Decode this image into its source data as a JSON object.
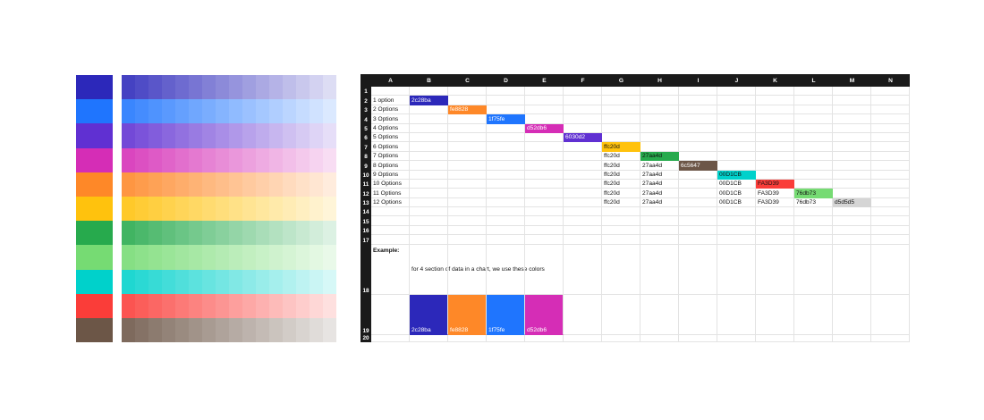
{
  "palette": [
    {
      "name": "indigo",
      "hex": "#2c28ba"
    },
    {
      "name": "blue",
      "hex": "#1f75fe"
    },
    {
      "name": "purple",
      "hex": "#6030d2"
    },
    {
      "name": "magenta",
      "hex": "#d52db6"
    },
    {
      "name": "orange",
      "hex": "#fe8828"
    },
    {
      "name": "yellow",
      "hex": "#ffc20d"
    },
    {
      "name": "green",
      "hex": "#27aa4d"
    },
    {
      "name": "light-green",
      "hex": "#76db73"
    },
    {
      "name": "cyan",
      "hex": "#00d1cb"
    },
    {
      "name": "red",
      "hex": "#fa3d39"
    },
    {
      "name": "brown",
      "hex": "#6c5647"
    }
  ],
  "tint_steps": 16,
  "sheet": {
    "columns": [
      "A",
      "B",
      "C",
      "D",
      "E",
      "F",
      "G",
      "H",
      "I",
      "J",
      "K",
      "L",
      "M",
      "N"
    ],
    "row_numbers": [
      "1",
      "2",
      "3",
      "4",
      "5",
      "6",
      "7",
      "8",
      "9",
      "10",
      "11",
      "12",
      "13",
      "14",
      "15",
      "16",
      "17",
      "18",
      "19",
      "20"
    ],
    "option_labels": [
      "1 option",
      "2 Options",
      "3 Options",
      "4 Options",
      "5 Options",
      "6 Options",
      "7 Options",
      "8 Options",
      "9 Options",
      "10 Options",
      "11 Options",
      "12 Options"
    ],
    "color_codes": [
      {
        "code": "2c28ba",
        "hex": "#2c28ba",
        "text": "light"
      },
      {
        "code": "fe8828",
        "hex": "#fe8828",
        "text": "light"
      },
      {
        "code": "1f75fe",
        "hex": "#1f75fe",
        "text": "light"
      },
      {
        "code": "d52db6",
        "hex": "#d52db6",
        "text": "light"
      },
      {
        "code": "6030d2",
        "hex": "#6030d2",
        "text": "light"
      },
      {
        "code": "ffc20d",
        "hex": "#ffc20d",
        "text": "dark"
      },
      {
        "code": "27aa4d",
        "hex": "#27aa4d",
        "text": "dark"
      },
      {
        "code": "6c5647",
        "hex": "#6c5647",
        "text": "light"
      },
      {
        "code": "00D1CB",
        "hex": "#00d1cb",
        "text": "dark"
      },
      {
        "code": "FA3D39",
        "hex": "#fa3d39",
        "text": "dark"
      },
      {
        "code": "76db73",
        "hex": "#76db73",
        "text": "dark"
      },
      {
        "code": "d5d5d5",
        "hex": "#d5d5d5",
        "text": "dark"
      }
    ],
    "example_label": "Example:",
    "example_description": "for 4 section of data in a chart, we use these colors",
    "example_colors": [
      {
        "code": "2c28ba",
        "hex": "#2c28ba"
      },
      {
        "code": "fe8828",
        "hex": "#fe8828"
      },
      {
        "code": "1f75fe",
        "hex": "#1f75fe"
      },
      {
        "code": "d52db6",
        "hex": "#d52db6"
      }
    ]
  }
}
